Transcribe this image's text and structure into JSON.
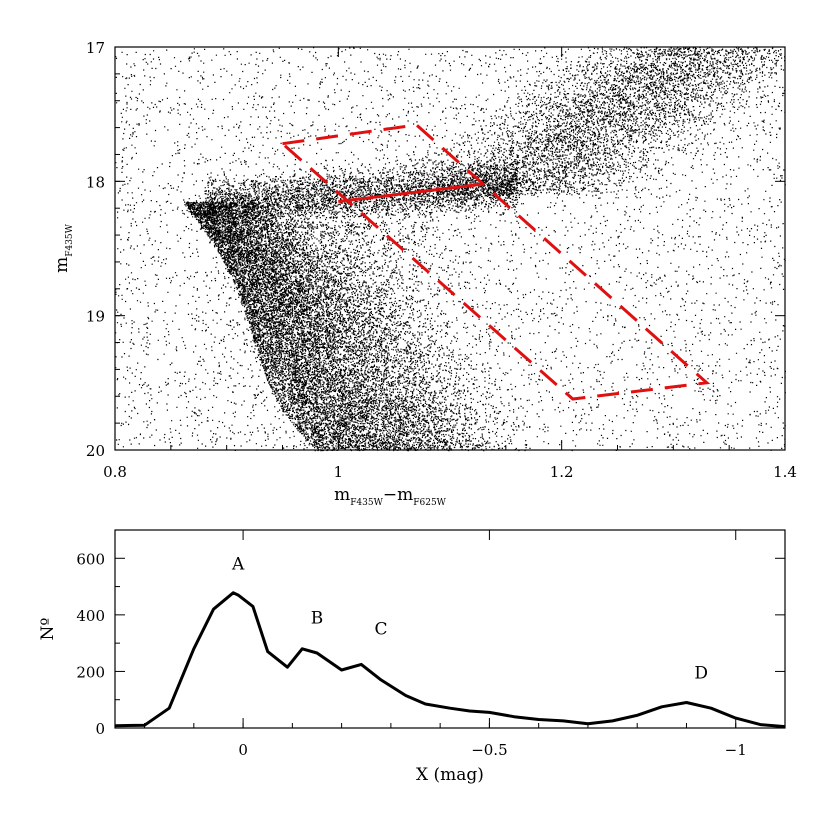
{
  "chart_data": [
    {
      "type": "scatter",
      "description_kind": "color-magnitude diagram",
      "xlabel_main": "m",
      "xlabel_sub1": "F435W",
      "xlabel_minus": "−m",
      "xlabel_sub2": "F625W",
      "ylabel_main": "m",
      "ylabel_sub": "F435W",
      "xlim": [
        0.8,
        1.4
      ],
      "ylim": [
        20,
        17
      ],
      "xticks": [
        0.8,
        1,
        1.2,
        1.4
      ],
      "xtick_labels": [
        "0.8",
        "1",
        "1.2",
        "1.4"
      ],
      "yticks": [
        17,
        18,
        19,
        20
      ],
      "ytick_labels": [
        "17",
        "18",
        "19",
        "20"
      ],
      "point_color": "#000000",
      "overlay_color": "#e01010",
      "selection_box": [
        [
          0.95,
          17.72
        ],
        [
          1.07,
          17.58
        ],
        [
          1.33,
          19.5
        ],
        [
          1.21,
          19.62
        ]
      ],
      "reference_line": [
        [
          1.0,
          18.15
        ],
        [
          1.13,
          18.02
        ]
      ]
    },
    {
      "type": "line",
      "xlabel": "X (mag)",
      "ylabel": "Nº",
      "xlim": [
        0.26,
        -1.1
      ],
      "ylim": [
        0,
        700
      ],
      "xticks": [
        0,
        -0.5,
        -1
      ],
      "xtick_labels": [
        "0",
        "−0.5",
        "−1"
      ],
      "yticks": [
        0,
        200,
        400,
        600
      ],
      "ytick_labels": [
        "0",
        "200",
        "400",
        "600"
      ],
      "line_color": "#000000",
      "x": [
        0.26,
        0.2,
        0.15,
        0.1,
        0.06,
        0.02,
        0.01,
        -0.02,
        -0.05,
        -0.09,
        -0.12,
        -0.15,
        -0.2,
        -0.24,
        -0.28,
        -0.33,
        -0.37,
        -0.42,
        -0.46,
        -0.5,
        -0.55,
        -0.6,
        -0.65,
        -0.7,
        -0.75,
        -0.8,
        -0.85,
        -0.9,
        -0.95,
        -1.0,
        -1.05,
        -1.1
      ],
      "y": [
        8,
        10,
        70,
        280,
        420,
        478,
        470,
        430,
        270,
        215,
        280,
        265,
        205,
        225,
        170,
        115,
        85,
        70,
        60,
        55,
        40,
        30,
        25,
        15,
        25,
        45,
        75,
        90,
        70,
        35,
        12,
        5
      ],
      "annotations": [
        {
          "text": "A",
          "x": 0.01,
          "y": 560
        },
        {
          "text": "B",
          "x": -0.15,
          "y": 370
        },
        {
          "text": "C",
          "x": -0.28,
          "y": 330
        },
        {
          "text": "D",
          "x": -0.93,
          "y": 175
        }
      ]
    }
  ]
}
